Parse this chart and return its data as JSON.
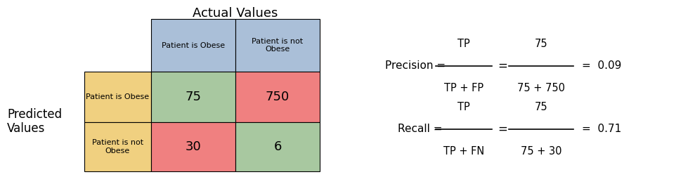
{
  "title_actual": "Actual Values",
  "label_predicted": "Predicted\nValues",
  "col_headers": [
    "Patient is Obese",
    "Patient is not\nObese"
  ],
  "row_headers": [
    "Patient is Obese",
    "Patient is not\nObese"
  ],
  "matrix_values": [
    [
      75,
      750
    ],
    [
      30,
      6
    ]
  ],
  "cell_colors": [
    [
      "#a8c8a0",
      "#f08080"
    ],
    [
      "#f08080",
      "#a8c8a0"
    ]
  ],
  "header_col_color": "#aabfd8",
  "header_row_color": "#f0d080",
  "bg_color": "#ffffff",
  "precision_label": "Precision =",
  "precision_num": "TP",
  "precision_den": "TP + FP",
  "precision_num2": "75",
  "precision_den2": "75 + 750",
  "precision_val": "0.09",
  "recall_label": "Recall =",
  "recall_num": "TP",
  "recall_den": "TP + FN",
  "recall_num2": "75",
  "recall_den2": "75 + 30",
  "recall_val": "0.71"
}
